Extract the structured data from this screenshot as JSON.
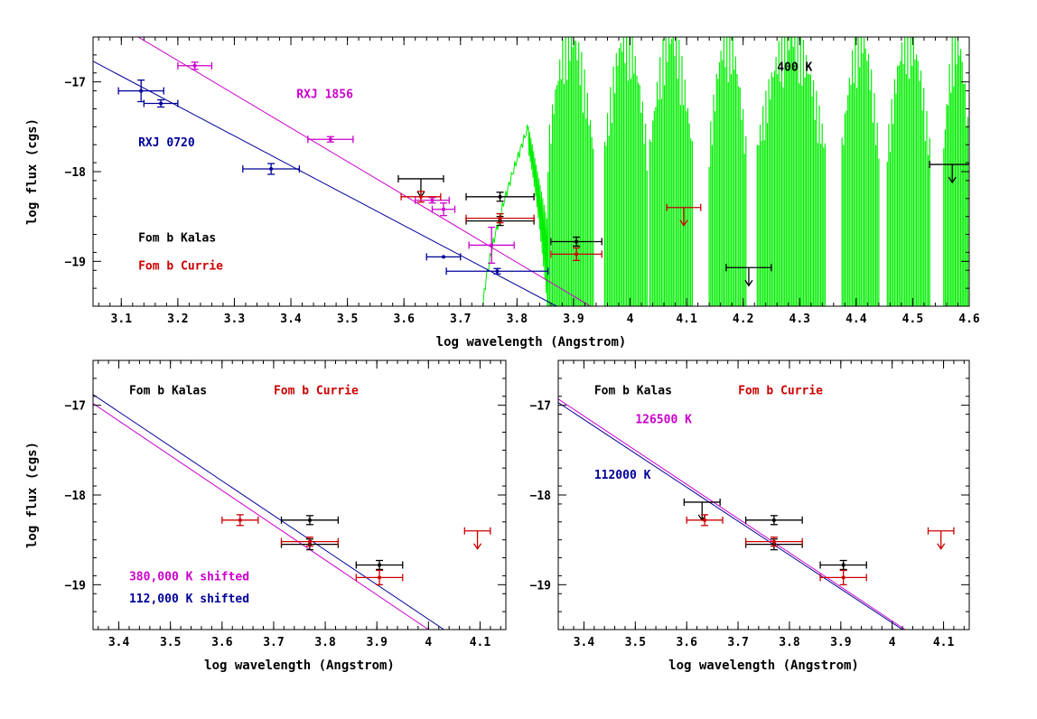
{
  "chart_data": [
    {
      "type": "scatter",
      "panel": "top",
      "xlabel": "log wavelength (Angstrom)",
      "ylabel": "log flux (cgs)",
      "xlim": [
        3.05,
        4.6
      ],
      "ylim": [
        -19.5,
        -16.5
      ],
      "xticks": [
        3.1,
        3.2,
        3.3,
        3.4,
        3.5,
        3.6,
        3.7,
        3.8,
        3.9,
        4,
        4.1,
        4.2,
        4.3,
        4.4,
        4.5,
        4.6
      ],
      "yticks": [
        -19,
        -18,
        -17
      ],
      "annotations": [
        {
          "text": "RXJ 1856",
          "x": 3.41,
          "y": -17.18,
          "color": "#cc00cc"
        },
        {
          "text": "RXJ 0720",
          "x": 3.13,
          "y": -17.72,
          "color": "#000099"
        },
        {
          "text": "Fom b Kalas",
          "x": 3.13,
          "y": -18.78,
          "color": "#000000"
        },
        {
          "text": "Fom b Currie",
          "x": 3.13,
          "y": -19.09,
          "color": "#cc0000"
        },
        {
          "text": "400 K",
          "x": 4.26,
          "y": -16.88,
          "color": "#000000"
        }
      ],
      "lines": [
        {
          "name": "RXJ 1856 fit",
          "color": "#cc00cc",
          "x": [
            3.05,
            3.93
          ],
          "y": [
            -16.2,
            -19.5
          ]
        },
        {
          "name": "RXJ 0720 fit",
          "color": "#000099",
          "x": [
            3.05,
            3.87
          ],
          "y": [
            -16.77,
            -19.5
          ]
        }
      ],
      "series": [
        {
          "name": "RXJ 1856",
          "color": "#cc00cc",
          "points": [
            {
              "x": 3.23,
              "y": -16.82,
              "xerr": 0.03,
              "yerr": 0.04
            },
            {
              "x": 3.47,
              "y": -17.64,
              "xerr": 0.04,
              "yerr": 0.03
            },
            {
              "x": 3.65,
              "y": -18.32,
              "xerr": 0.03,
              "yerr": 0.03
            },
            {
              "x": 3.67,
              "y": -18.42,
              "xerr": 0.02,
              "yerr": 0.07
            },
            {
              "x": 3.755,
              "y": -18.82,
              "xerr": 0.04,
              "yerr": 0.2
            }
          ]
        },
        {
          "name": "RXJ 0720",
          "color": "#000099",
          "points": [
            {
              "x": 3.135,
              "y": -17.1,
              "xerr": 0.04,
              "yerr": 0.12
            },
            {
              "x": 3.17,
              "y": -17.24,
              "xerr": 0.03,
              "yerr": 0.04
            },
            {
              "x": 3.365,
              "y": -17.97,
              "xerr": 0.05,
              "yerr": 0.06
            },
            {
              "x": 3.67,
              "y": -18.95,
              "xerr": 0.03,
              "yerr": 0
            },
            {
              "x": 3.765,
              "y": -19.11,
              "xerr": 0.09,
              "yerr": 0.03
            }
          ]
        },
        {
          "name": "Fom b Kalas",
          "color": "#000000",
          "points": [
            {
              "x": 3.63,
              "y": -18.08,
              "xerr": 0.04,
              "yerr": 0,
              "upper_limit": true
            },
            {
              "x": 3.77,
              "y": -18.28,
              "xerr": 0.06,
              "yerr": 0.05
            },
            {
              "x": 3.77,
              "y": -18.55,
              "xerr": 0.06,
              "yerr": 0.05
            },
            {
              "x": 3.905,
              "y": -18.78,
              "xerr": 0.045,
              "yerr": 0.05
            },
            {
              "x": 4.21,
              "y": -19.07,
              "xerr": 0.04,
              "yerr": 0,
              "upper_limit": true
            },
            {
              "x": 4.57,
              "y": -17.92,
              "xerr": 0.04,
              "yerr": 0,
              "upper_limit": true
            }
          ]
        },
        {
          "name": "Fom b Currie",
          "color": "#cc0000",
          "points": [
            {
              "x": 3.63,
              "y": -18.28,
              "xerr": 0.035,
              "yerr": 0.06
            },
            {
              "x": 3.77,
              "y": -18.52,
              "xerr": 0.06,
              "yerr": 0.05
            },
            {
              "x": 3.905,
              "y": -18.92,
              "xerr": 0.045,
              "yerr": 0.07
            },
            {
              "x": 4.095,
              "y": -18.4,
              "xerr": 0.03,
              "yerr": 0,
              "upper_limit": true
            }
          ]
        }
      ],
      "spectrum": {
        "name": "400 K model spectrum",
        "color": "#00ee00",
        "onset_x": 3.74,
        "bands": [
          {
            "x0": 3.855,
            "x1": 3.935
          },
          {
            "x0": 3.955,
            "x1": 4.03
          },
          {
            "x0": 4.035,
            "x1": 4.11
          },
          {
            "x0": 4.14,
            "x1": 4.205
          },
          {
            "x0": 4.225,
            "x1": 4.345
          },
          {
            "x0": 4.375,
            "x1": 4.44
          },
          {
            "x0": 4.455,
            "x1": 4.53
          },
          {
            "x0": 4.555,
            "x1": 4.6
          }
        ]
      }
    },
    {
      "type": "scatter",
      "panel": "bottom-left",
      "xlabel": "log wavelength (Angstrom)",
      "ylabel": "log flux (cgs)",
      "xlim": [
        3.35,
        4.15
      ],
      "ylim": [
        -19.5,
        -16.5
      ],
      "xticks": [
        3.4,
        3.5,
        3.6,
        3.7,
        3.8,
        3.9,
        4,
        4.1
      ],
      "yticks": [
        -19,
        -18,
        -17
      ],
      "annotations": [
        {
          "text": "Fom b Kalas",
          "x": 3.42,
          "y": -16.88,
          "color": "#000000"
        },
        {
          "text": "Fom b Currie",
          "x": 3.7,
          "y": -16.88,
          "color": "#cc0000"
        },
        {
          "text": "380,000 K shifted",
          "x": 3.42,
          "y": -18.95,
          "color": "#cc00cc"
        },
        {
          "text": "112,000 K shifted",
          "x": 3.42,
          "y": -19.2,
          "color": "#000099"
        }
      ],
      "lines": [
        {
          "name": "112,000 K shifted",
          "color": "#000099",
          "x": [
            3.35,
            4.03
          ],
          "y": [
            -16.88,
            -19.5
          ]
        },
        {
          "name": "380,000 K shifted",
          "color": "#cc00cc",
          "x": [
            3.35,
            4.0
          ],
          "y": [
            -16.98,
            -19.5
          ]
        }
      ],
      "series": [
        {
          "name": "Fom b Kalas",
          "color": "#000000",
          "points": [
            {
              "x": 3.77,
              "y": -18.28,
              "xerr": 0.055,
              "yerr": 0.05
            },
            {
              "x": 3.77,
              "y": -18.55,
              "xerr": 0.055,
              "yerr": 0.06
            },
            {
              "x": 3.905,
              "y": -18.78,
              "xerr": 0.045,
              "yerr": 0.05
            }
          ]
        },
        {
          "name": "Fom b Currie",
          "color": "#cc0000",
          "points": [
            {
              "x": 3.635,
              "y": -18.28,
              "xerr": 0.035,
              "yerr": 0.06
            },
            {
              "x": 3.77,
              "y": -18.52,
              "xerr": 0.055,
              "yerr": 0.05
            },
            {
              "x": 3.905,
              "y": -18.92,
              "xerr": 0.045,
              "yerr": 0.08
            },
            {
              "x": 4.095,
              "y": -18.4,
              "xerr": 0.025,
              "yerr": 0,
              "upper_limit": true
            }
          ]
        }
      ]
    },
    {
      "type": "scatter",
      "panel": "bottom-right",
      "xlabel": "log wavelength (Angstrom)",
      "ylabel": "",
      "xlim": [
        3.35,
        4.15
      ],
      "ylim": [
        -19.5,
        -16.5
      ],
      "xticks": [
        3.4,
        3.5,
        3.6,
        3.7,
        3.8,
        3.9,
        4,
        4.1
      ],
      "yticks": [
        -19,
        -18,
        -17
      ],
      "annotations": [
        {
          "text": "Fom b Kalas",
          "x": 3.42,
          "y": -16.88,
          "color": "#000000"
        },
        {
          "text": "Fom b Currie",
          "x": 3.7,
          "y": -16.88,
          "color": "#cc0000"
        },
        {
          "text": "126500 K",
          "x": 3.5,
          "y": -17.2,
          "color": "#cc00cc"
        },
        {
          "text": "112000 K",
          "x": 3.42,
          "y": -17.82,
          "color": "#000099"
        }
      ],
      "lines": [
        {
          "name": "112000 K",
          "color": "#000099",
          "x": [
            3.35,
            4.02
          ],
          "y": [
            -16.97,
            -19.5
          ]
        },
        {
          "name": "126500 K",
          "color": "#cc00cc",
          "x": [
            3.35,
            4.025
          ],
          "y": [
            -16.93,
            -19.5
          ]
        }
      ],
      "series": [
        {
          "name": "Fom b Kalas",
          "color": "#000000",
          "points": [
            {
              "x": 3.63,
              "y": -18.08,
              "xerr": 0.035,
              "yerr": 0,
              "upper_limit": true
            },
            {
              "x": 3.77,
              "y": -18.28,
              "xerr": 0.055,
              "yerr": 0.05
            },
            {
              "x": 3.77,
              "y": -18.55,
              "xerr": 0.055,
              "yerr": 0.06
            },
            {
              "x": 3.905,
              "y": -18.78,
              "xerr": 0.045,
              "yerr": 0.05
            }
          ]
        },
        {
          "name": "Fom b Currie",
          "color": "#cc0000",
          "points": [
            {
              "x": 3.635,
              "y": -18.28,
              "xerr": 0.035,
              "yerr": 0.06
            },
            {
              "x": 3.77,
              "y": -18.52,
              "xerr": 0.055,
              "yerr": 0.05
            },
            {
              "x": 3.905,
              "y": -18.92,
              "xerr": 0.045,
              "yerr": 0.08
            },
            {
              "x": 4.095,
              "y": -18.4,
              "xerr": 0.025,
              "yerr": 0,
              "upper_limit": true
            }
          ]
        }
      ]
    }
  ]
}
